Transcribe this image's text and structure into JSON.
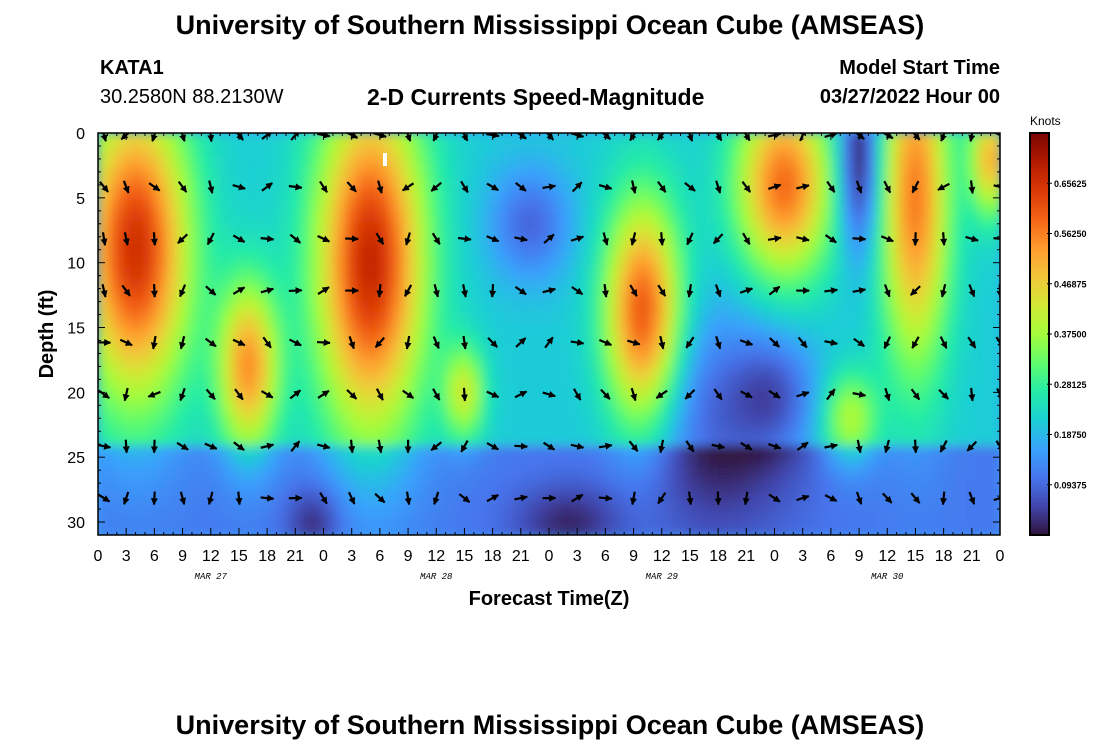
{
  "header": {
    "title": "University of Southern Mississippi Ocean Cube (AMSEAS)",
    "station": "KATA1",
    "coords": "30.2580N  88.2130W",
    "subtitle": "2-D Currents Speed-Magnitude",
    "model_start_label": "Model Start Time",
    "model_start_value": "03/27/2022 Hour 00"
  },
  "footer": {
    "title": "University of Southern Mississippi Ocean Cube (AMSEAS)"
  },
  "chart_data": {
    "type": "heatmap",
    "title": "2-D Currents Speed-Magnitude",
    "xlabel": "Forecast Time(Z)",
    "ylabel": "Depth (ft)",
    "x_tick_labels": [
      "0",
      "3",
      "6",
      "9",
      "12",
      "15",
      "18",
      "21",
      "0",
      "3",
      "6",
      "9",
      "12",
      "15",
      "18",
      "21",
      "0",
      "3",
      "6",
      "9",
      "12",
      "15",
      "18",
      "21",
      "0",
      "3",
      "6",
      "9",
      "12",
      "15",
      "18",
      "21",
      "0"
    ],
    "date_labels": [
      "MAR 27",
      "MAR 28",
      "MAR 29",
      "MAR 30"
    ],
    "y_ticks": [
      0,
      5,
      10,
      15,
      20,
      25,
      30
    ],
    "ylim": [
      0,
      31
    ],
    "colorbar": {
      "label": "Knots",
      "ticks": [
        "0.65625",
        "0.56250",
        "0.46875",
        "0.37500",
        "0.28125",
        "0.18750",
        "0.09375"
      ],
      "range": [
        0,
        0.75
      ]
    },
    "arrow_depths_ft": [
      0,
      4,
      8,
      12,
      16,
      20,
      24,
      28
    ],
    "arrow_hours": [
      0,
      3,
      6,
      9,
      12,
      15,
      18,
      21,
      24,
      27,
      30,
      33,
      36,
      39,
      42,
      45,
      48,
      51,
      54,
      57,
      60,
      63,
      66,
      69,
      72,
      75,
      78,
      81,
      84,
      87,
      90,
      93,
      96
    ],
    "colormap": [
      "#30123b",
      "#4145ab",
      "#4675ed",
      "#39a2fc",
      "#1bcfd4",
      "#24eca6",
      "#61fc6c",
      "#a4fc3b",
      "#d1e834",
      "#f3c63a",
      "#fe9b2d",
      "#f36315",
      "#d93806",
      "#b11901",
      "#7a0403"
    ]
  }
}
